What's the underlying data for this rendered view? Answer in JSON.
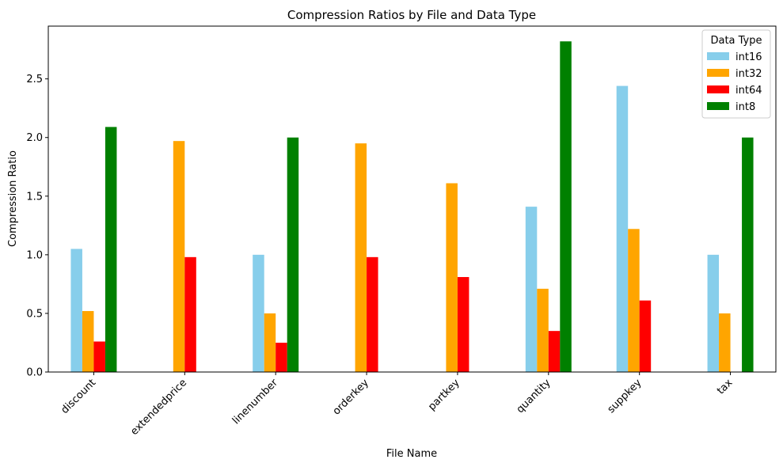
{
  "chart_data": {
    "type": "bar",
    "title": "Compression Ratios by File and Data Type",
    "xlabel": "File Name",
    "ylabel": "Compression Ratio",
    "categories": [
      "discount",
      "extendedprice",
      "linenumber",
      "orderkey",
      "partkey",
      "quantity",
      "suppkey",
      "tax"
    ],
    "ylim": [
      0,
      2.95
    ],
    "yticks": [
      0.0,
      0.5,
      1.0,
      1.5,
      2.0,
      2.5
    ],
    "ytick_labels": [
      "0.0",
      "0.5",
      "1.0",
      "1.5",
      "2.0",
      "2.5"
    ],
    "grid": false,
    "legend": {
      "title": "Data Type",
      "placement": "top-right"
    },
    "series": [
      {
        "name": "int16",
        "color": "#87CEEB",
        "values": [
          1.05,
          null,
          1.0,
          null,
          null,
          1.41,
          2.44,
          1.0
        ]
      },
      {
        "name": "int32",
        "color": "#FFA500",
        "values": [
          0.52,
          1.97,
          0.5,
          1.95,
          1.61,
          0.71,
          1.22,
          0.5
        ]
      },
      {
        "name": "int64",
        "color": "#FF0000",
        "values": [
          0.26,
          0.98,
          0.25,
          0.98,
          0.81,
          0.35,
          0.61,
          null
        ]
      },
      {
        "name": "int8",
        "color": "#008000",
        "values": [
          2.09,
          null,
          2.0,
          null,
          null,
          2.82,
          null,
          2.0
        ]
      }
    ]
  }
}
